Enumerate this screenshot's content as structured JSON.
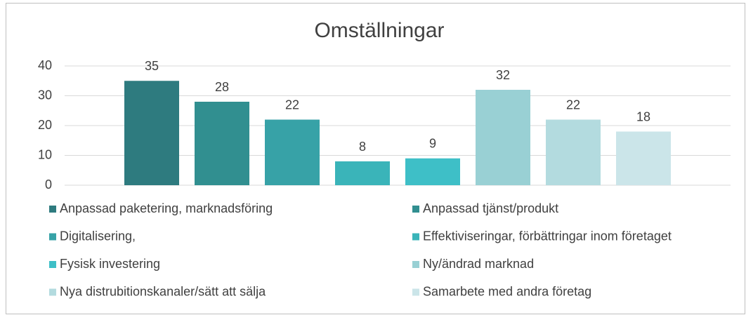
{
  "chart_data": {
    "type": "bar",
    "title": "Omställningar",
    "categories": [
      null
    ],
    "series": [
      {
        "name": "Anpassad paketering, marknadsföring",
        "color": "#2e7b7f",
        "values": [
          35
        ]
      },
      {
        "name": "Anpassad tjänst/produkt",
        "color": "#318f90",
        "values": [
          28
        ]
      },
      {
        "name": "Digitalisering,",
        "color": "#37a2a7",
        "values": [
          22
        ]
      },
      {
        "name": "Effektiviseringar, förbättringar inom företaget",
        "color": "#3ab4b9",
        "values": [
          8
        ]
      },
      {
        "name": "Fysisk investering",
        "color": "#3ebfc7",
        "values": [
          9
        ]
      },
      {
        "name": "Ny/ändrad marknad",
        "color": "#99d0d4",
        "values": [
          32
        ]
      },
      {
        "name": "Nya distrubitionskanaler/sätt att sälja",
        "color": "#b3dbdf",
        "values": [
          22
        ]
      },
      {
        "name": "Samarbete med andra företag",
        "color": "#cbe5e9",
        "values": [
          18
        ]
      }
    ],
    "ylim": [
      0,
      40
    ],
    "yticks": [
      0,
      10,
      20,
      30,
      40
    ],
    "grid": true
  }
}
